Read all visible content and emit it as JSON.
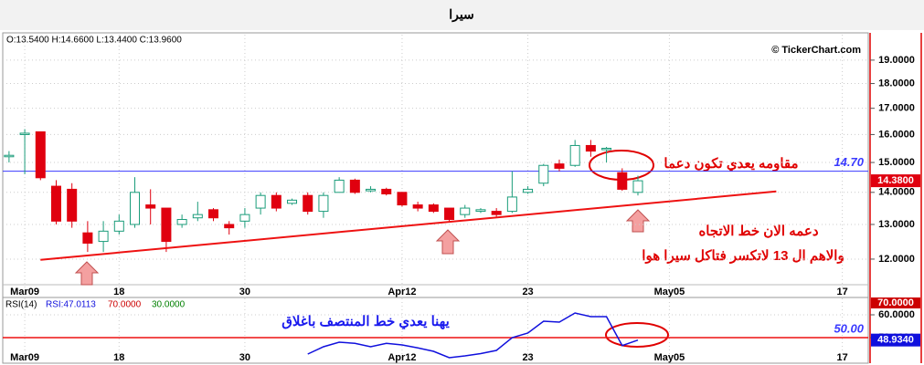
{
  "chart_data": [
    {
      "type": "candlestick",
      "title": "سيرا",
      "info": "O:13.5400   H:14.6600   L:13.4400   C:13.9600",
      "credit": "© TickerChart.com",
      "log_scale": true,
      "grid": true,
      "up_color": "#1a9c7a",
      "down_color": "#e0000f",
      "xlim": [
        -0.4,
        54.65
      ],
      "xticks": [
        {
          "value": 1,
          "label": "Mar09"
        },
        {
          "value": 7,
          "label": "18"
        },
        {
          "value": 15,
          "label": "30"
        },
        {
          "value": 25,
          "label": "Apr12"
        },
        {
          "value": 33,
          "label": "23"
        },
        {
          "value": 42,
          "label": "May05"
        },
        {
          "value": 53,
          "label": "17"
        }
      ],
      "ylim": [
        11.24,
        20.15
      ],
      "yticks": [
        {
          "value": 12,
          "label": "12.0000"
        },
        {
          "value": 13,
          "label": "13.0000"
        },
        {
          "value": 14,
          "label": "14.0000"
        },
        {
          "value": 15,
          "label": "15.0000"
        },
        {
          "value": 16,
          "label": "16.0000"
        },
        {
          "value": 17,
          "label": "17.0000"
        },
        {
          "value": 18,
          "label": "18.0000"
        },
        {
          "value": 19,
          "label": "19.0000"
        }
      ],
      "open": [
        15.2,
        16.0,
        16.1,
        14.2,
        14.1,
        12.75,
        12.5,
        12.8,
        13.0,
        13.6,
        13.5,
        13.0,
        13.2,
        13.45,
        13.0,
        13.1,
        13.5,
        13.9,
        13.65,
        13.9,
        13.4,
        14.0,
        14.4,
        14.05,
        14.1,
        14.0,
        13.6,
        13.6,
        13.5,
        13.3,
        13.4,
        13.4,
        13.4,
        14.0,
        14.3,
        14.95,
        14.9,
        15.6,
        15.45,
        14.65,
        14.0
      ],
      "high": [
        15.4,
        16.2,
        16.1,
        14.4,
        14.3,
        13.1,
        13.1,
        13.3,
        14.5,
        14.1,
        13.5,
        13.3,
        13.7,
        13.5,
        13.1,
        13.5,
        14.0,
        14.0,
        13.8,
        14.0,
        14.0,
        14.5,
        14.45,
        14.2,
        14.15,
        14.0,
        13.7,
        13.65,
        13.5,
        13.6,
        13.5,
        13.5,
        14.7,
        14.2,
        14.95,
        15.1,
        15.8,
        15.8,
        15.55,
        14.8,
        14.55
      ],
      "low": [
        15.0,
        14.6,
        14.4,
        13.0,
        12.9,
        12.2,
        12.2,
        12.7,
        12.9,
        13.0,
        12.2,
        12.9,
        13.1,
        13.1,
        12.7,
        12.9,
        13.3,
        13.4,
        13.6,
        13.3,
        13.2,
        14.0,
        13.95,
        14.0,
        13.9,
        13.55,
        13.4,
        13.35,
        13.1,
        13.2,
        13.35,
        13.2,
        13.35,
        13.95,
        14.2,
        14.7,
        14.85,
        15.2,
        15.0,
        14.05,
        13.9
      ],
      "close": [
        15.25,
        16.05,
        14.48,
        13.1,
        13.1,
        12.45,
        12.8,
        13.1,
        14.0,
        13.5,
        12.5,
        13.15,
        13.3,
        13.2,
        12.9,
        13.3,
        13.9,
        13.5,
        13.75,
        13.4,
        13.9,
        14.4,
        14.0,
        14.1,
        13.95,
        13.6,
        13.5,
        13.4,
        13.15,
        13.5,
        13.45,
        13.3,
        13.85,
        14.1,
        14.9,
        14.8,
        15.6,
        15.4,
        15.5,
        14.1,
        14.38
      ],
      "last_value_label": {
        "value": 14.38,
        "label": "14.3800"
      },
      "hlines": [
        {
          "value": 14.7,
          "label": "14.70",
          "color": "#3a3aff"
        }
      ],
      "trendline": {
        "start": [
          2,
          11.98
        ],
        "end": [
          48.8,
          14.03
        ],
        "color": "#ee1111"
      },
      "annotations": [
        {
          "text": "مقاومه يعدي تكون دعما",
          "color": "#e00000"
        },
        {
          "text": "دعمه الان خط الاتجاه",
          "color": "#e00000"
        },
        {
          "text": "والاهم ال 13 لاتكسر فتاكل سيرا هوا",
          "color": "#e00000"
        }
      ]
    },
    {
      "type": "line",
      "name": "RSI(14)",
      "info": "RSI:47.0113",
      "levels": [
        {
          "value": 70,
          "label": "70.0000",
          "color": "#cc0000"
        },
        {
          "value": 30,
          "label": "30.0000",
          "color": "#008000"
        }
      ],
      "color": "#1010dd",
      "grid": true,
      "xlim": [
        -0.4,
        54.65
      ],
      "xticks": [
        {
          "value": 1,
          "label": "Mar09"
        },
        {
          "value": 7,
          "label": "18"
        },
        {
          "value": 15,
          "label": "30"
        },
        {
          "value": 25,
          "label": "Apr12"
        },
        {
          "value": 33,
          "label": "23"
        },
        {
          "value": 42,
          "label": "May05"
        },
        {
          "value": 53,
          "label": "17"
        }
      ],
      "ylim": [
        40,
        67.2
      ],
      "yticks": [
        {
          "value": 50,
          "label": "50.0000"
        },
        {
          "value": 60,
          "label": "60.0000"
        }
      ],
      "values": [
        null,
        null,
        null,
        null,
        null,
        null,
        null,
        null,
        null,
        null,
        null,
        null,
        null,
        null,
        null,
        null,
        null,
        null,
        null,
        42.8,
        46,
        48,
        47.5,
        46,
        47.5,
        46.8,
        45.5,
        44,
        41.2,
        42,
        43,
        44.4,
        50,
        52,
        57.2,
        56.8,
        60.8,
        59.2,
        59.2,
        46.5,
        48.934
      ],
      "last_value_label": {
        "value": 48.934,
        "label": "48.9340"
      },
      "hlines": [
        {
          "value": 50,
          "label": "50.00",
          "color": "#ee1111",
          "label_color": "#3a3aff"
        }
      ],
      "annotations": [
        {
          "text": "يهنا يعدي خط المنتصف باغلاق",
          "color": "#1a1aee"
        }
      ]
    }
  ]
}
